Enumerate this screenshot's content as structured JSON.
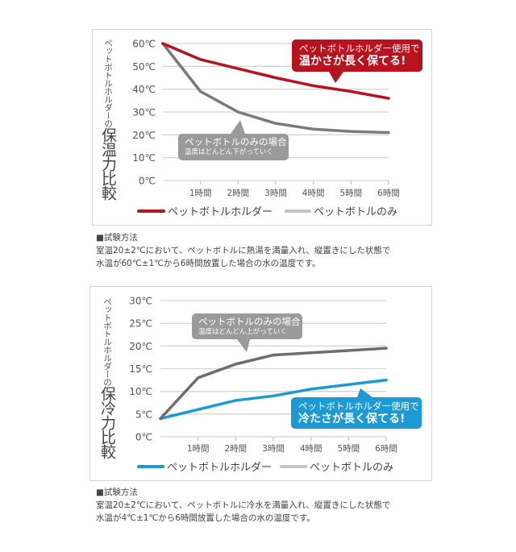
{
  "chart_data": [
    {
      "type": "line",
      "title": "ペットボトルホルダーの保温力比較",
      "title_small": "ペットボトルホルダーの",
      "title_big": "保温力比較",
      "categories": [
        "0",
        "1時間",
        "2時間",
        "3時間",
        "4時間",
        "5時間",
        "6時間"
      ],
      "x_tick_labels": [
        "1時間",
        "2時間",
        "3時間",
        "4時間",
        "5時間",
        "6時間"
      ],
      "y_tick_labels": [
        "0℃",
        "10℃",
        "20℃",
        "30℃",
        "40℃",
        "50℃",
        "60℃"
      ],
      "y_ticks": [
        0,
        10,
        20,
        30,
        40,
        50,
        60
      ],
      "ylim": [
        0,
        60
      ],
      "xlabel": "",
      "ylabel": "",
      "grid": true,
      "legend_position": "bottom",
      "series": [
        {
          "name": "ペットボトルホルダー",
          "color": "#b8121f",
          "values": [
            60,
            53,
            49,
            45,
            41.5,
            39,
            36
          ]
        },
        {
          "name": "ペットボトルのみ",
          "color": "#7a7a7a",
          "legend_color": "#c4c4c4",
          "values": [
            60,
            39,
            30,
            25,
            22.5,
            21.5,
            21
          ]
        }
      ],
      "annotations": [
        {
          "line1": "ペットボトルホルダー使用で",
          "line2": "温かさが長く保てる!",
          "color": "#b8121f"
        },
        {
          "line1": "ペットボトルのみの場合",
          "line2": "温度はどんどん下がっていく",
          "color": "#9a9a9a"
        }
      ],
      "note_title": "■試験方法",
      "note_lines": [
        "室温20±2℃において、ペットボトルに熱湯を満量入れ、縦置きにした状態で",
        "水温が60℃±1℃から6時間放置した場合の水の温度です。"
      ]
    },
    {
      "type": "line",
      "title": "ペットボトルホルダーの保冷力比較",
      "title_small": "ペットボトルホルダーの",
      "title_big": "保冷力比較",
      "categories": [
        "0",
        "1時間",
        "2時間",
        "3時間",
        "4時間",
        "5時間",
        "6時間"
      ],
      "x_tick_labels": [
        "1時間",
        "2時間",
        "3時間",
        "4時間",
        "5時間",
        "6時間"
      ],
      "y_tick_labels": [
        "0℃",
        "5℃",
        "10℃",
        "15℃",
        "20℃",
        "25℃",
        "30℃"
      ],
      "y_ticks": [
        0,
        5,
        10,
        15,
        20,
        25,
        30
      ],
      "ylim": [
        0,
        30
      ],
      "xlabel": "",
      "ylabel": "",
      "grid": true,
      "legend_position": "bottom",
      "series": [
        {
          "name": "ペットボトルホルダー",
          "color": "#1b9ad6",
          "values": [
            4,
            6,
            8,
            9,
            10.5,
            11.5,
            12.5
          ]
        },
        {
          "name": "ペットボトルのみ",
          "color": "#6e6e6e",
          "legend_color": "#c4c4c4",
          "values": [
            4,
            13,
            16,
            18,
            18.5,
            19,
            19.5
          ]
        }
      ],
      "annotations": [
        {
          "line1": "ペットボトルのみの場合",
          "line2": "温度はどんどん上がっていく",
          "color": "#9a9a9a"
        },
        {
          "line1": "ペットボトルホルダー使用で",
          "line2": "冷たさが長く保てる!",
          "color": "#1b9ad6"
        }
      ],
      "note_title": "■試験方法",
      "note_lines": [
        "室温20±2℃において、ペットボトルに冷水を満量入れ、縦置きにした状態で",
        "水温が4℃±1℃から6時間放置した場合の水の温度です。"
      ]
    }
  ]
}
